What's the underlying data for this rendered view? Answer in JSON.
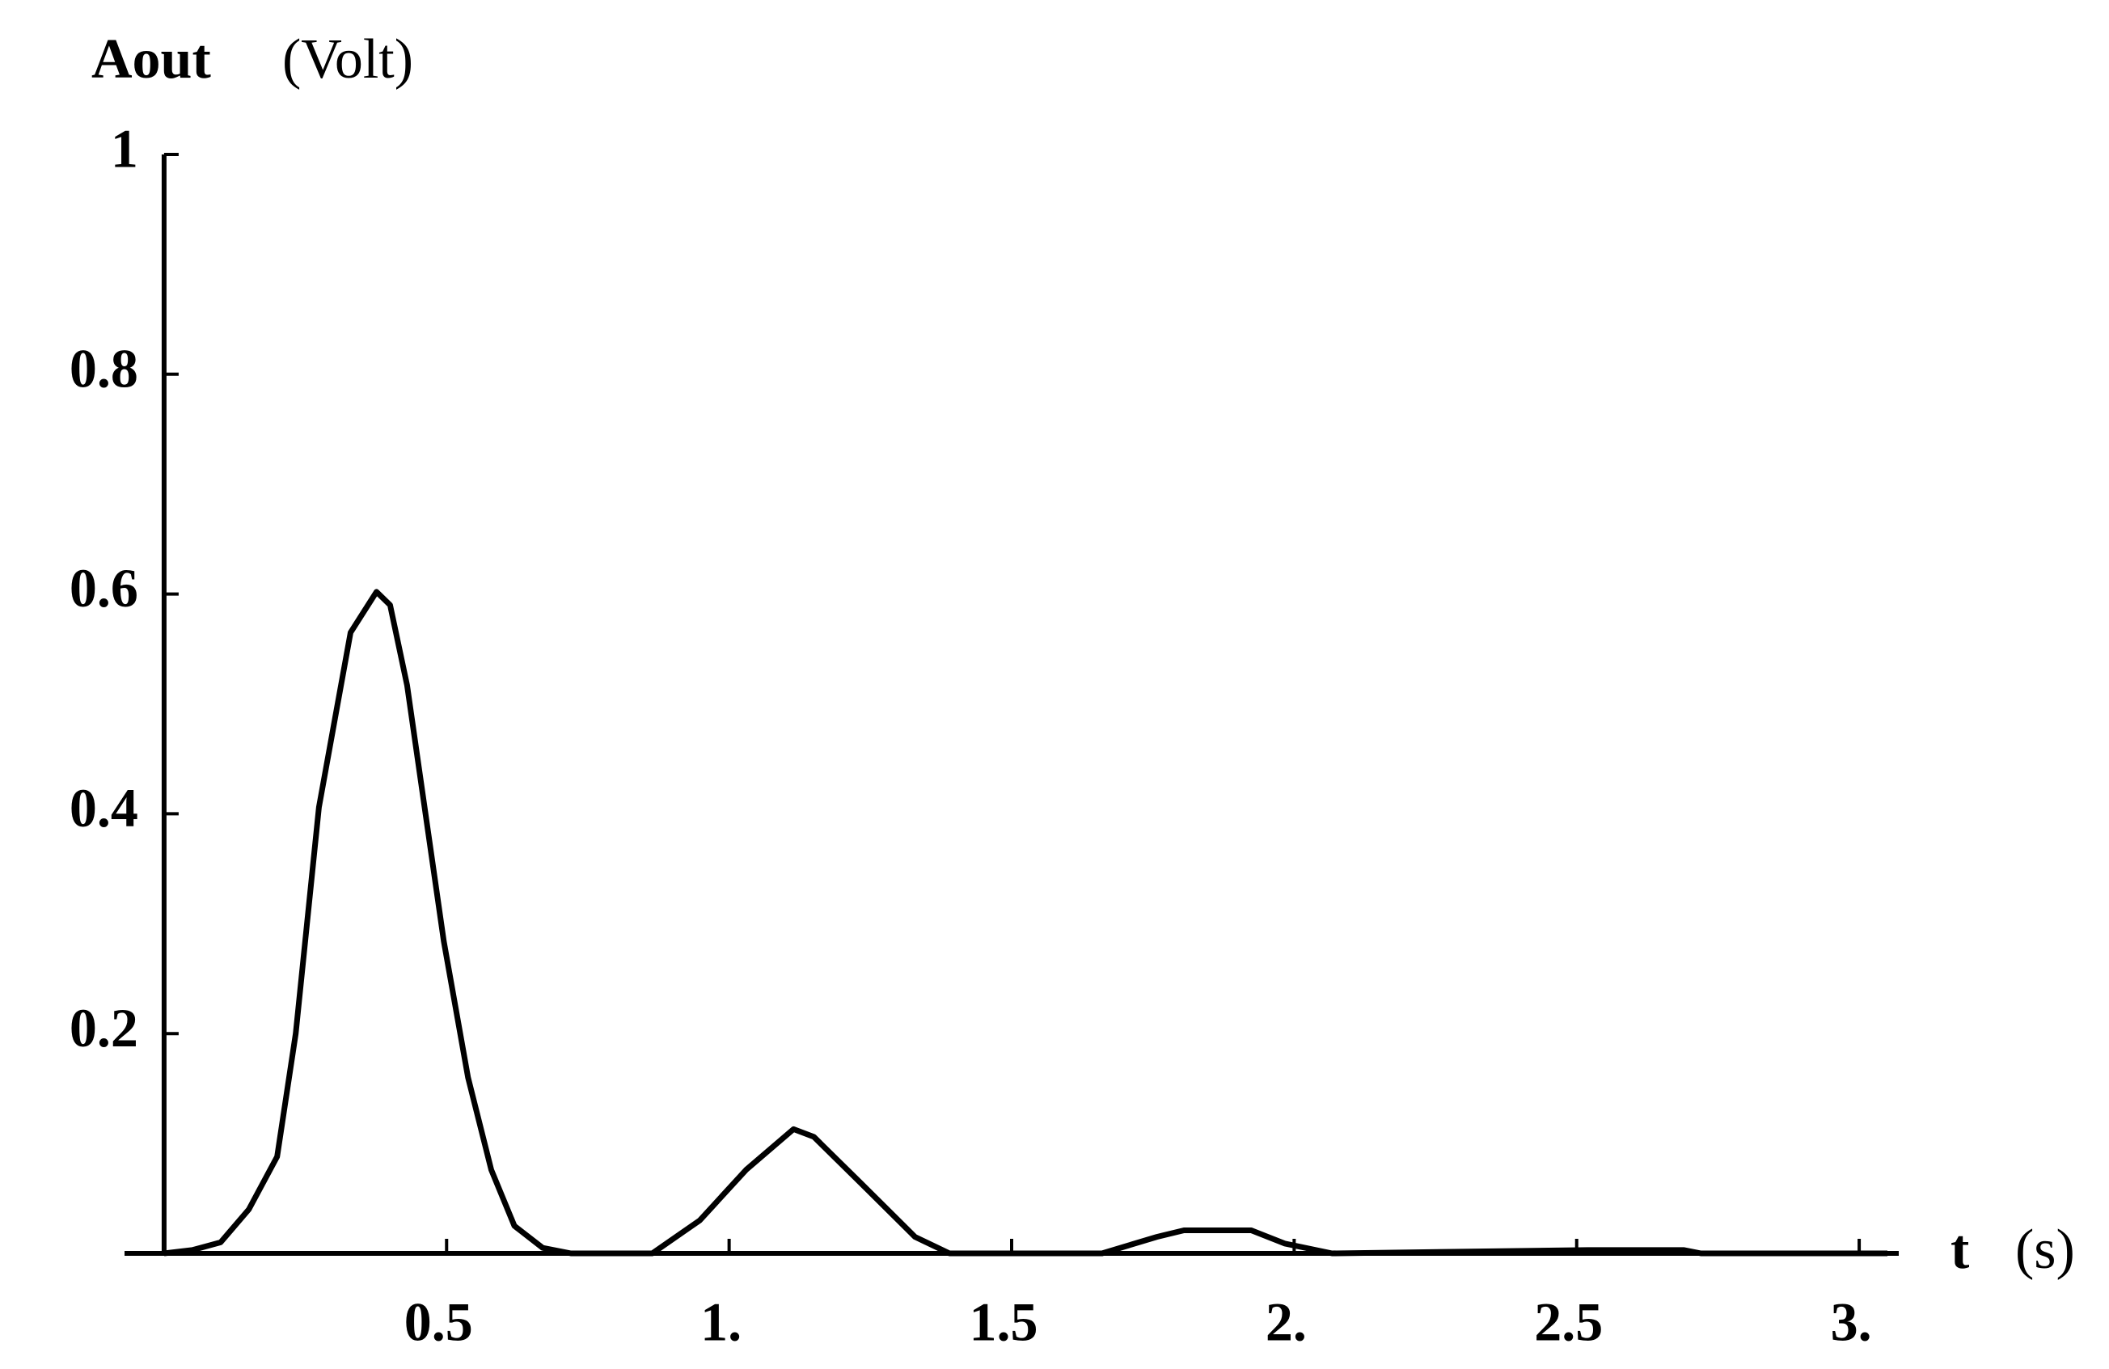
{
  "chart_data": {
    "type": "line",
    "ylabel": "Aout",
    "ylabel_unit": "(Volt)",
    "xlabel": "t",
    "xlabel_unit": "(s)",
    "x": [
      0,
      0.05,
      0.1,
      0.15,
      0.2,
      0.233,
      0.274,
      0.33,
      0.376,
      0.4,
      0.43,
      0.495,
      0.538,
      0.579,
      0.62,
      0.67,
      0.72,
      0.864,
      0.948,
      1.03,
      1.114,
      1.15,
      1.233,
      1.329,
      1.39,
      1.66,
      1.757,
      1.805,
      1.924,
      1.983,
      2.067,
      2.52,
      2.69,
      2.72,
      3.05
    ],
    "series": [
      {
        "color": "#000000",
        "values": [
          0,
          0.003,
          0.01,
          0.04,
          0.088,
          0.2,
          0.406,
          0.565,
          0.602,
          0.59,
          0.517,
          0.284,
          0.16,
          0.076,
          0.025,
          0.005,
          0,
          0,
          0.03,
          0.076,
          0.113,
          0.106,
          0.064,
          0.015,
          0,
          0,
          0.015,
          0.021,
          0.021,
          0.009,
          0,
          0.003,
          0.003,
          0,
          0
        ]
      }
    ],
    "xlim": [
      -0.07,
      3.07
    ],
    "ylim": [
      0,
      1
    ],
    "xticks": [
      0.5,
      {
        "value": 1,
        "label": "1."
      },
      1.5,
      {
        "value": 2,
        "label": "2."
      },
      2.5,
      {
        "value": 3,
        "label": "3."
      }
    ],
    "yticks": [
      0.2,
      0.4,
      0.6,
      0.8,
      1
    ]
  }
}
